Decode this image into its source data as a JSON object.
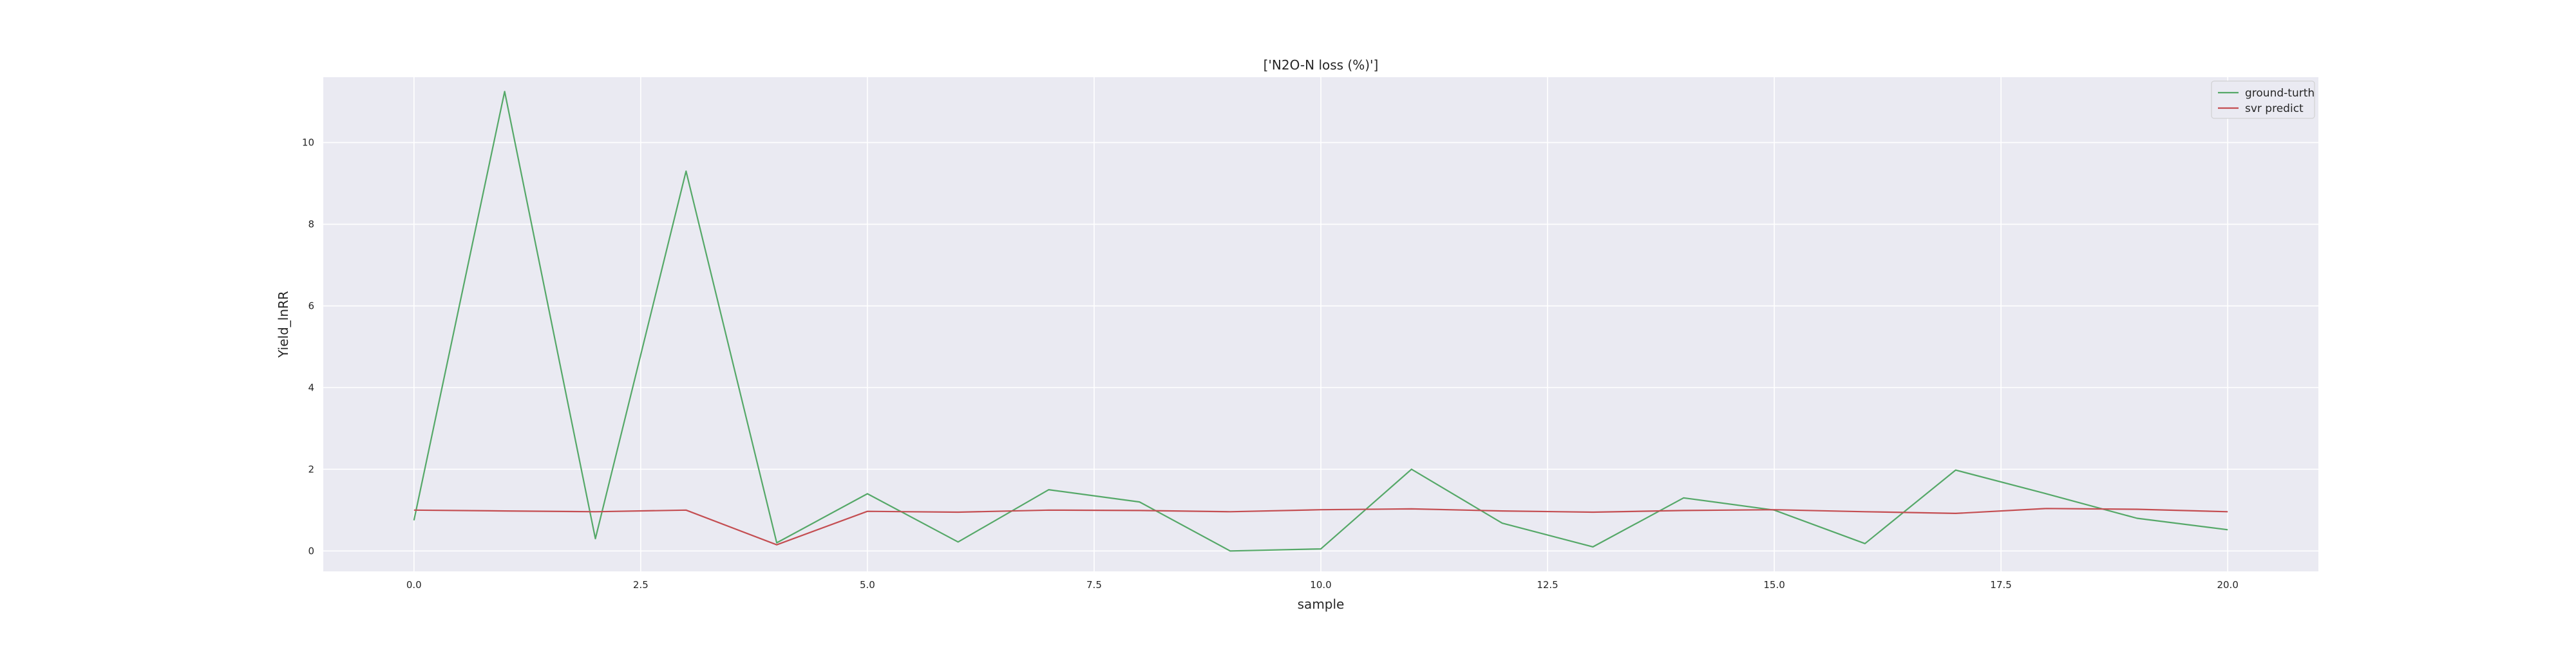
{
  "chart_data": {
    "type": "line",
    "title": "['N2O-N loss (%)']",
    "xlabel": "sample",
    "ylabel": "Yield_lnRR",
    "xlim": [
      -1,
      21
    ],
    "ylim": [
      -0.5,
      11.6
    ],
    "grid": true,
    "legend_placement": "top-right",
    "background_color": "#eaeaf2",
    "x": [
      0,
      1,
      2,
      3,
      4,
      5,
      6,
      7,
      8,
      9,
      10,
      11,
      12,
      13,
      14,
      15,
      16,
      17,
      18,
      19,
      20
    ],
    "x_ticks": [
      0.0,
      2.5,
      5.0,
      7.5,
      10.0,
      12.5,
      15.0,
      17.5,
      20.0
    ],
    "x_tick_labels": [
      "0.0",
      "2.5",
      "5.0",
      "7.5",
      "10.0",
      "12.5",
      "15.0",
      "17.5",
      "20.0"
    ],
    "y_ticks": [
      0,
      2,
      4,
      6,
      8,
      10
    ],
    "y_tick_labels": [
      "0",
      "2",
      "4",
      "6",
      "8",
      "10"
    ],
    "series": [
      {
        "name": "ground-turth",
        "color": "#55a868",
        "values": [
          0.75,
          11.25,
          0.3,
          9.3,
          0.2,
          1.4,
          0.22,
          1.5,
          1.2,
          0.0,
          0.05,
          2.0,
          0.68,
          0.1,
          1.3,
          1.0,
          0.18,
          1.98,
          1.4,
          0.8,
          0.52
        ]
      },
      {
        "name": "svr predict",
        "color": "#c44e52",
        "values": [
          1.0,
          0.98,
          0.96,
          1.0,
          0.15,
          0.97,
          0.95,
          1.0,
          0.99,
          0.96,
          1.01,
          1.03,
          0.98,
          0.95,
          0.99,
          1.01,
          0.96,
          0.92,
          1.04,
          1.02,
          0.96
        ]
      }
    ]
  }
}
